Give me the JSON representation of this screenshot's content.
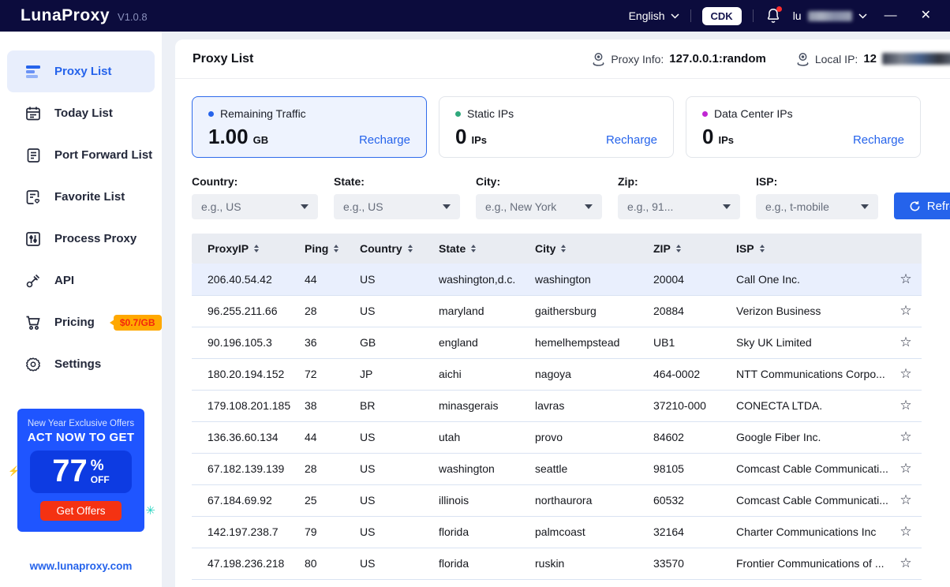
{
  "topbar": {
    "logo": "LunaProxy",
    "version": "V1.0.8",
    "language": "English",
    "cdk_label": "CDK",
    "username_visible": "lu",
    "minimize_glyph": "—",
    "close_glyph": "✕"
  },
  "sidebar": {
    "items": [
      {
        "label": "Proxy List",
        "icon": "proxy-list-icon",
        "active": true
      },
      {
        "label": "Today List",
        "icon": "today-list-icon"
      },
      {
        "label": "Port Forward List",
        "icon": "port-forward-icon"
      },
      {
        "label": "Favorite List",
        "icon": "favorite-list-icon"
      },
      {
        "label": "Process Proxy",
        "icon": "process-proxy-icon"
      },
      {
        "label": "API",
        "icon": "api-icon"
      },
      {
        "label": "Pricing",
        "icon": "pricing-cart-icon",
        "badge": "$0.7/GB"
      },
      {
        "label": "Settings",
        "icon": "settings-gear-icon"
      }
    ],
    "promo": {
      "line1": "New Year Exclusive Offers",
      "line2": "ACT NOW TO GET",
      "percent": "77",
      "percent_sign": "%",
      "off_label": "OFF",
      "button_label": "Get Offers"
    },
    "website": "www.lunaproxy.com"
  },
  "header": {
    "title": "Proxy List",
    "proxy_info_label": "Proxy Info:",
    "proxy_info_value": "127.0.0.1:random",
    "local_ip_label": "Local IP:",
    "local_ip_visible": "12"
  },
  "cards": [
    {
      "label": "Remaining Traffic",
      "value": "1.00",
      "unit": "GB",
      "action": "Recharge",
      "dot_color": "#2563eb",
      "selected": true
    },
    {
      "label": "Static IPs",
      "value": "0",
      "unit": "IPs",
      "action": "Recharge",
      "dot_color": "#2fa87c",
      "selected": false
    },
    {
      "label": "Data Center IPs",
      "value": "0",
      "unit": "IPs",
      "action": "Recharge",
      "dot_color": "#c026d3",
      "selected": false
    }
  ],
  "filters": [
    {
      "label": "Country:",
      "placeholder": "e.g., US"
    },
    {
      "label": "State:",
      "placeholder": "e.g., US"
    },
    {
      "label": "City:",
      "placeholder": "e.g., New York"
    },
    {
      "label": "Zip:",
      "placeholder": "e.g., 91..."
    },
    {
      "label": "ISP:",
      "placeholder": "e.g., t-mobile"
    }
  ],
  "refresh_button_label": "Refresh",
  "table": {
    "columns": [
      "ProxyIP",
      "Ping",
      "Country",
      "State",
      "City",
      "ZIP",
      "ISP"
    ],
    "rows": [
      [
        "206.40.54.42",
        "44",
        "US",
        "washington,d.c.",
        "washington",
        "20004",
        "Call One Inc."
      ],
      [
        "96.255.211.66",
        "28",
        "US",
        "maryland",
        "gaithersburg",
        "20884",
        "Verizon Business"
      ],
      [
        "90.196.105.3",
        "36",
        "GB",
        "england",
        "hemelhempstead",
        "UB1",
        "Sky UK Limited"
      ],
      [
        "180.20.194.152",
        "72",
        "JP",
        "aichi",
        "nagoya",
        "464-0002",
        "NTT Communications Corpo..."
      ],
      [
        "179.108.201.185",
        "38",
        "BR",
        "minasgerais",
        "lavras",
        "37210-000",
        "CONECTA LTDA."
      ],
      [
        "136.36.60.134",
        "44",
        "US",
        "utah",
        "provo",
        "84602",
        "Google Fiber Inc."
      ],
      [
        "67.182.139.139",
        "28",
        "US",
        "washington",
        "seattle",
        "98105",
        "Comcast Cable Communicati..."
      ],
      [
        "67.184.69.92",
        "25",
        "US",
        "illinois",
        "northaurora",
        "60532",
        "Comcast Cable Communicati..."
      ],
      [
        "142.197.238.7",
        "79",
        "US",
        "florida",
        "palmcoast",
        "32164",
        "Charter Communications Inc"
      ],
      [
        "47.198.236.218",
        "80",
        "US",
        "florida",
        "ruskin",
        "33570",
        "Frontier Communications of ..."
      ]
    ]
  },
  "colors": {
    "accent": "#2563eb",
    "topbar_bg": "#0c0c3d",
    "badge_bg": "#ffa800",
    "badge_text": "#f3260c",
    "promo_bg": "#1f55ff",
    "promo_inner_bg": "#0d3be2",
    "promo_button_bg": "#f43212",
    "selected_row_bg": "#e9effd"
  }
}
